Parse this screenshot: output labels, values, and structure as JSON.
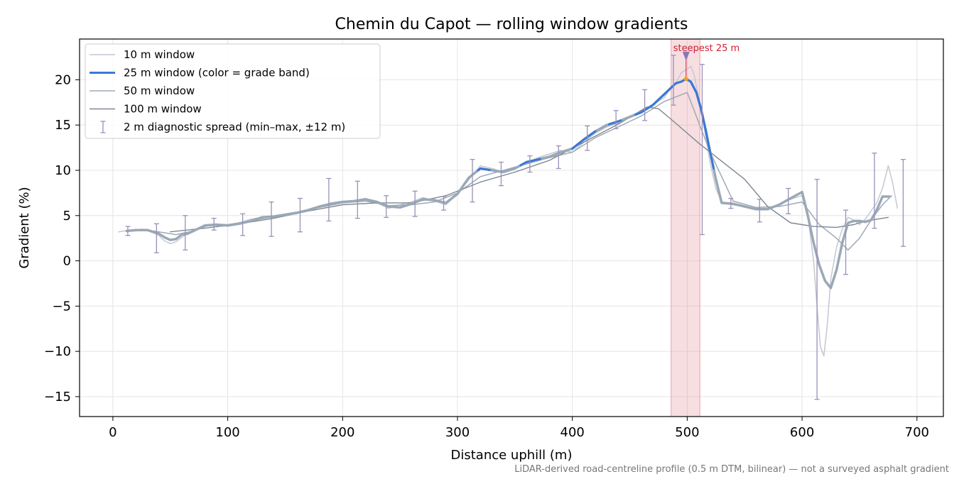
{
  "chart_data": {
    "type": "line",
    "title": "Chemin du Capot — rolling window gradients",
    "xlabel": "Distance uphill (m)",
    "ylabel": "Gradient (%)",
    "xlim": [
      -29,
      723
    ],
    "ylim": [
      -17.2,
      24.5
    ],
    "xticks": [
      0,
      100,
      200,
      300,
      400,
      500,
      600,
      700
    ],
    "yticks": [
      -15,
      -10,
      -5,
      0,
      5,
      10,
      15,
      20
    ],
    "grid": true,
    "legend_position": "top-left",
    "footer_note": "LiDAR-derived road-centreline profile (0.5 m DTM, bilinear) — not a surveyed asphalt gradient",
    "colors": {
      "w10": "#c4c8d0",
      "w25_base": "#9aa8b6",
      "w25_band": "#3a78d8",
      "w50": "#a0aab8",
      "w100": "#7f8794",
      "errorbar": "#9a90b8",
      "highlight": "#e8a0a8",
      "annotation": "#cc2233"
    },
    "highlight_span": {
      "x": [
        486,
        511
      ],
      "label": "steepest 25 m",
      "peak_x": 499,
      "peak_y": 20.1
    },
    "series": [
      {
        "name": "10 m window",
        "key": "w10",
        "x": [
          5,
          10,
          15,
          20,
          25,
          30,
          35,
          40,
          45,
          50,
          55,
          60,
          65,
          70,
          75,
          80,
          85,
          90,
          95,
          100,
          110,
          120,
          130,
          140,
          150,
          160,
          170,
          180,
          190,
          200,
          210,
          220,
          230,
          240,
          250,
          260,
          270,
          280,
          290,
          300,
          310,
          320,
          330,
          340,
          350,
          360,
          370,
          380,
          390,
          400,
          410,
          420,
          430,
          440,
          450,
          460,
          470,
          480,
          485,
          490,
          495,
          500,
          503,
          506,
          510,
          515,
          520,
          525,
          530,
          540,
          550,
          560,
          570,
          580,
          590,
          600,
          605,
          610,
          613,
          616,
          619,
          622,
          625,
          630,
          635,
          640,
          645,
          650,
          655,
          660,
          665,
          670,
          675,
          679,
          683
        ],
        "y": [
          3.2,
          3.3,
          3.4,
          3.3,
          3.5,
          3.4,
          3.1,
          2.8,
          2.2,
          1.9,
          2.1,
          2.6,
          3.0,
          3.2,
          3.6,
          3.8,
          4.0,
          3.9,
          3.8,
          3.9,
          4.2,
          4.6,
          4.8,
          4.9,
          5.1,
          5.2,
          5.6,
          6.0,
          6.4,
          6.6,
          6.6,
          6.9,
          6.4,
          5.8,
          6.2,
          6.5,
          7.0,
          6.6,
          6.2,
          7.4,
          9.0,
          10.5,
          10.2,
          9.8,
          10.3,
          10.8,
          11.4,
          11.8,
          12.2,
          12.0,
          13.1,
          14.1,
          14.8,
          15.2,
          16.0,
          16.5,
          17.3,
          18.0,
          19.0,
          19.6,
          20.8,
          21.2,
          21.5,
          20.6,
          18.0,
          14.5,
          10.8,
          8.0,
          6.5,
          6.2,
          6.0,
          5.8,
          5.8,
          6.2,
          6.8,
          7.2,
          5.0,
          0.0,
          -5.0,
          -9.5,
          -10.5,
          -7.0,
          -2.0,
          1.5,
          3.5,
          4.8,
          4.5,
          4.0,
          4.6,
          5.5,
          6.4,
          8.0,
          10.5,
          8.5,
          5.8
        ]
      },
      {
        "name": "25 m window (color = grade band)",
        "key": "w25",
        "x": [
          12,
          20,
          30,
          40,
          45,
          50,
          55,
          60,
          65,
          70,
          80,
          90,
          100,
          110,
          120,
          130,
          140,
          150,
          160,
          170,
          180,
          190,
          200,
          210,
          220,
          230,
          240,
          250,
          260,
          270,
          280,
          290,
          300,
          310,
          320,
          330,
          340,
          350,
          360,
          370,
          380,
          390,
          400,
          410,
          420,
          430,
          440,
          450,
          460,
          470,
          480,
          490,
          495,
          499,
          503,
          508,
          512,
          516,
          520,
          525,
          530,
          540,
          550,
          560,
          570,
          580,
          590,
          600,
          605,
          610,
          615,
          620,
          625,
          630,
          635,
          640,
          645,
          650,
          655,
          660,
          665,
          670,
          676
        ],
        "y": [
          3.3,
          3.4,
          3.4,
          3.0,
          2.6,
          2.3,
          2.4,
          2.9,
          3.0,
          3.3,
          3.9,
          4.0,
          3.9,
          4.1,
          4.4,
          4.8,
          4.9,
          5.1,
          5.3,
          5.6,
          6.0,
          6.3,
          6.5,
          6.6,
          6.8,
          6.5,
          6.0,
          5.9,
          6.3,
          6.8,
          6.7,
          6.4,
          7.4,
          9.2,
          10.2,
          10.0,
          9.8,
          10.2,
          10.9,
          11.2,
          11.5,
          12.0,
          12.4,
          13.4,
          14.3,
          15.0,
          15.4,
          15.9,
          16.4,
          17.2,
          18.4,
          19.6,
          19.8,
          20.1,
          19.8,
          18.6,
          16.8,
          14.5,
          12.0,
          9.0,
          6.4,
          6.3,
          6.0,
          5.7,
          5.7,
          6.2,
          6.9,
          7.6,
          5.0,
          2.0,
          -0.5,
          -2.2,
          -3.0,
          -1.0,
          2.0,
          4.2,
          4.4,
          4.4,
          4.3,
          4.5,
          5.6,
          7.1,
          7.1
        ]
      },
      {
        "name": "50 m window",
        "key": "w50",
        "x": [
          25,
          40,
          55,
          70,
          85,
          100,
          120,
          140,
          160,
          180,
          200,
          220,
          240,
          260,
          280,
          300,
          320,
          340,
          360,
          380,
          400,
          420,
          440,
          460,
          480,
          500,
          520,
          540,
          560,
          580,
          600,
          615,
          630,
          640,
          650,
          660,
          670,
          678
        ],
        "y": [
          3.5,
          3.2,
          2.9,
          3.3,
          4.0,
          4.0,
          4.4,
          4.9,
          5.3,
          5.9,
          6.4,
          6.6,
          6.1,
          6.2,
          6.5,
          7.5,
          9.3,
          10.0,
          10.7,
          11.4,
          12.0,
          13.6,
          14.8,
          16.0,
          17.6,
          18.6,
          12.0,
          6.6,
          5.9,
          6.0,
          6.5,
          4.0,
          2.5,
          1.2,
          2.5,
          4.5,
          6.2,
          7.2
        ]
      },
      {
        "name": "100 m window",
        "key": "w100",
        "x": [
          50,
          80,
          110,
          140,
          170,
          200,
          230,
          260,
          290,
          320,
          350,
          380,
          410,
          440,
          465,
          475,
          490,
          510,
          530,
          550,
          570,
          590,
          610,
          630,
          645,
          655,
          665,
          675
        ],
        "y": [
          3.2,
          3.6,
          4.1,
          4.7,
          5.5,
          6.2,
          6.4,
          6.4,
          7.2,
          8.7,
          9.8,
          11.1,
          13.1,
          15.1,
          17.0,
          16.8,
          15.2,
          13.0,
          11.0,
          9.0,
          6.0,
          4.2,
          3.8,
          3.7,
          4.0,
          4.4,
          4.6,
          4.8
        ]
      }
    ],
    "grade_band_segments": [
      [
        318,
        328
      ],
      [
        355,
        372
      ],
      [
        400,
        420
      ],
      [
        432,
        442
      ],
      [
        455,
        500
      ],
      [
        500,
        523
      ]
    ],
    "errorbars": {
      "name": "2 m diagnostic spread (min–max, ±12 m)",
      "x": [
        13,
        38,
        63,
        88,
        113,
        138,
        163,
        188,
        213,
        238,
        263,
        288,
        313,
        338,
        363,
        388,
        413,
        438,
        463,
        488,
        513,
        538,
        563,
        588,
        613,
        638,
        663,
        688
      ],
      "ymin": [
        2.8,
        0.9,
        1.2,
        3.4,
        2.8,
        2.7,
        3.2,
        4.4,
        4.7,
        4.8,
        4.9,
        5.6,
        6.5,
        8.3,
        9.8,
        10.2,
        12.2,
        14.6,
        15.5,
        17.2,
        2.9,
        5.8,
        4.3,
        5.2,
        -15.3,
        -1.5,
        3.6,
        1.6
      ],
      "ymax": [
        3.8,
        4.1,
        5.0,
        4.7,
        5.2,
        6.5,
        6.9,
        9.1,
        8.8,
        7.2,
        7.7,
        7.1,
        11.2,
        10.9,
        11.6,
        12.7,
        14.9,
        16.6,
        18.9,
        22.7,
        21.7,
        6.9,
        6.8,
        8.0,
        9.0,
        5.6,
        11.9,
        11.2
      ]
    },
    "legend": [
      {
        "label": "10 m window",
        "key": "w10"
      },
      {
        "label": "25 m window (color = grade band)",
        "key": "w25_band"
      },
      {
        "label": "50 m window",
        "key": "w50"
      },
      {
        "label": "100 m window",
        "key": "w100"
      },
      {
        "label": "2 m diagnostic spread (min–max, ±12 m)",
        "key": "errorbar"
      }
    ]
  }
}
